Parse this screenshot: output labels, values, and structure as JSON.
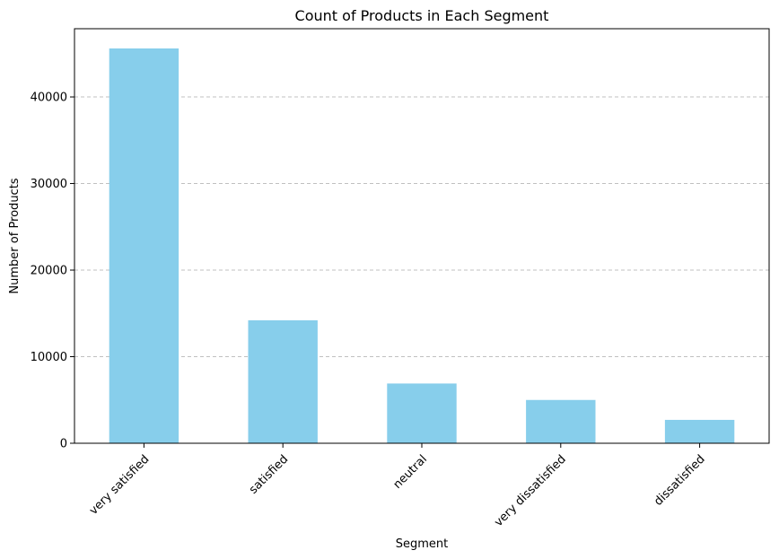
{
  "chart_data": {
    "type": "bar",
    "title": "Count of Products in Each Segment",
    "xlabel": "Segment",
    "ylabel": "Number of Products",
    "categories": [
      "very satisfied",
      "satisfied",
      "neutral",
      "very dissatisfied",
      "dissatisfied"
    ],
    "values": [
      45600,
      14200,
      6900,
      5000,
      2700
    ],
    "ylim": [
      0,
      47880
    ],
    "yticks": [
      0,
      10000,
      20000,
      30000,
      40000
    ],
    "grid": "y-axis dashed",
    "bar_color": "#87CEEB",
    "grid_color": "#c0c0c0"
  }
}
